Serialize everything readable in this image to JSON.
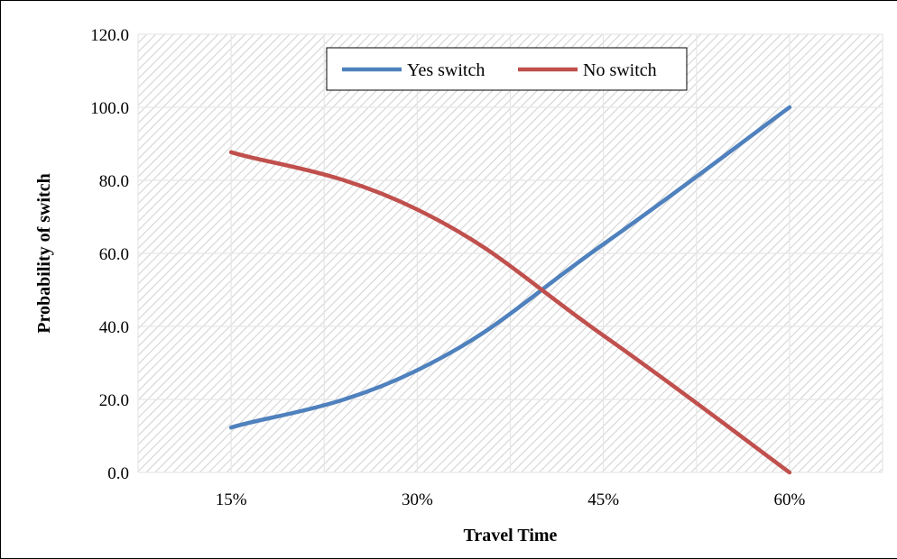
{
  "chart_data": {
    "type": "line",
    "categories": [
      "15%",
      "30%",
      "45%",
      "60%"
    ],
    "series": [
      {
        "name": "Yes switch",
        "values": [
          12.3,
          28.0,
          62.5,
          100.0
        ],
        "color": "#4f81bd"
      },
      {
        "name": "No switch",
        "values": [
          87.7,
          72.0,
          37.5,
          0.0
        ],
        "color": "#c0504d"
      }
    ],
    "ylim": [
      0,
      120
    ],
    "yticks": [
      0,
      20,
      40,
      60,
      80,
      100,
      120
    ],
    "ytick_labels": [
      "0.0",
      "20.0",
      "40.0",
      "60.0",
      "80.0",
      "100.0",
      "120.0"
    ],
    "xlabel": "Travel Time",
    "ylabel": "Probability of switch",
    "grid": true,
    "smooth": true,
    "legend_position": "top-center"
  }
}
